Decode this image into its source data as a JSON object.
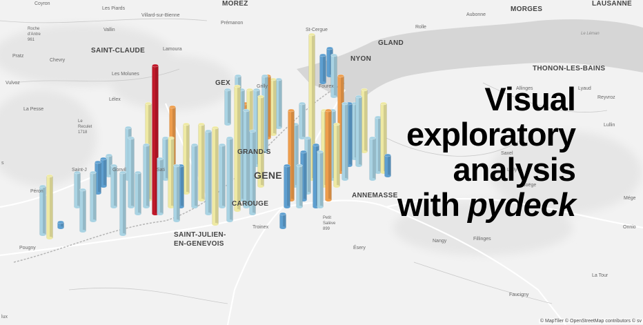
{
  "map": {
    "places": [
      {
        "name": "Coyron",
        "kind": "small"
      },
      {
        "name": "Les Piards",
        "kind": "small"
      },
      {
        "name": "Villard-sur-Bienne",
        "kind": "small"
      },
      {
        "name": "MOREZ",
        "kind": "city"
      },
      {
        "name": "Aubonne",
        "kind": "small"
      },
      {
        "name": "MORGES",
        "kind": "city"
      },
      {
        "name": "LAUSANNE",
        "kind": "city"
      },
      {
        "name": "Prémanon",
        "kind": "small"
      },
      {
        "name": "Roche\nd'Antre\n961",
        "kind": "small"
      },
      {
        "name": "Vallin",
        "kind": "small"
      },
      {
        "name": "St-Cergue",
        "kind": "small"
      },
      {
        "name": "Rolle",
        "kind": "small"
      },
      {
        "name": "SAINT-CLAUDE",
        "kind": "city"
      },
      {
        "name": "Lamoura",
        "kind": "small"
      },
      {
        "name": "GLAND",
        "kind": "city"
      },
      {
        "name": "Pratz",
        "kind": "small"
      },
      {
        "name": "Chevry",
        "kind": "small"
      },
      {
        "name": "NYON",
        "kind": "city"
      },
      {
        "name": "THONON-LES-BAINS",
        "kind": "city"
      },
      {
        "name": "Les Molunes",
        "kind": "small"
      },
      {
        "name": "Vulvoz",
        "kind": "small"
      },
      {
        "name": "GEX",
        "kind": "city"
      },
      {
        "name": "Allinges",
        "kind": "small"
      },
      {
        "name": "Lyaud",
        "kind": "small"
      },
      {
        "name": "Lélex",
        "kind": "small"
      },
      {
        "name": "Reyvroz",
        "kind": "small"
      },
      {
        "name": "La Pesse",
        "kind": "small"
      },
      {
        "name": "Le\nReculet\n1718",
        "kind": "small"
      },
      {
        "name": "Lullin",
        "kind": "small"
      },
      {
        "name": "Saxel",
        "kind": "small"
      },
      {
        "name": "Saint-J",
        "kind": "small"
      },
      {
        "name": "GRAND-S",
        "kind": "city"
      },
      {
        "name": "Lully",
        "kind": "small"
      },
      {
        "name": "GENE",
        "kind": "city"
      },
      {
        "name": "Boëge",
        "kind": "small"
      },
      {
        "name": "Péron",
        "kind": "small"
      },
      {
        "name": "CAROUGE",
        "kind": "city"
      },
      {
        "name": "ANNEMASSE",
        "kind": "city"
      },
      {
        "name": "Mége",
        "kind": "small"
      },
      {
        "name": "Petit\nSalève\n899",
        "kind": "small"
      },
      {
        "name": "Troinex",
        "kind": "small"
      },
      {
        "name": "SAINT-JULIEN-\nEN-GENEVOIS",
        "kind": "city"
      },
      {
        "name": "Onnio",
        "kind": "small"
      },
      {
        "name": "Nangy",
        "kind": "small"
      },
      {
        "name": "Fillinges",
        "kind": "small"
      },
      {
        "name": "Pougny",
        "kind": "small"
      },
      {
        "name": "Ésery",
        "kind": "small"
      },
      {
        "name": "La Tour",
        "kind": "small"
      },
      {
        "name": "Faucigny",
        "kind": "small"
      },
      {
        "name": "Gonvil",
        "kind": "small"
      },
      {
        "name": "Sati",
        "kind": "small"
      },
      {
        "name": "Fourex",
        "kind": "small"
      },
      {
        "name": "Grilly",
        "kind": "small"
      },
      {
        "name": "lux",
        "kind": "small"
      },
      {
        "name": "s",
        "kind": "small"
      },
      {
        "name": "Le Léman",
        "kind": "small"
      }
    ]
  },
  "headline": {
    "line1": "Visual",
    "line2": "exploratory",
    "line3": "analysis",
    "line4_prefix": "with ",
    "line4_em": "pydeck"
  },
  "attribution": "© MapTiler © OpenStreetMap contributors © sv",
  "colors": {
    "low": "#5e9fd0",
    "low_mid": "#a9d3e3",
    "mid": "#eee9a3",
    "high_mid": "#ee9d4c",
    "high": "#c0192a",
    "lake": "#d6d6d6",
    "land": "#f2f2f2"
  }
}
